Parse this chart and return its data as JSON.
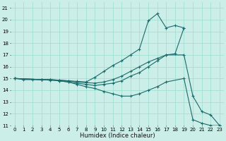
{
  "xlabel": "Humidex (Indice chaleur)",
  "bg_color": "#cceee8",
  "grid_color": "#99ddcc",
  "line_color": "#1a6b6b",
  "xlim": [
    -0.5,
    23.5
  ],
  "ylim": [
    11,
    21.5
  ],
  "xticks": [
    0,
    1,
    2,
    3,
    4,
    5,
    6,
    7,
    8,
    9,
    10,
    11,
    12,
    13,
    14,
    15,
    16,
    17,
    18,
    19,
    20,
    21,
    22,
    23
  ],
  "yticks": [
    11,
    12,
    13,
    14,
    15,
    16,
    17,
    18,
    19,
    20,
    21
  ],
  "line1_x": [
    0,
    1,
    2,
    3,
    4,
    5,
    6,
    7,
    8,
    9,
    10,
    11,
    12,
    13,
    14,
    15,
    16,
    17,
    18,
    19
  ],
  "line1_y": [
    15,
    14.9,
    14.9,
    14.9,
    14.9,
    14.85,
    14.8,
    14.75,
    14.7,
    15.1,
    15.6,
    16.1,
    16.5,
    17.0,
    17.5,
    19.9,
    20.5,
    19.3,
    19.5,
    19.3
  ],
  "line2_x": [
    0,
    3,
    4,
    5,
    6,
    7,
    8,
    9,
    10,
    11,
    12,
    13,
    14,
    15,
    16,
    17,
    18,
    19
  ],
  "line2_y": [
    15,
    14.9,
    14.9,
    14.85,
    14.8,
    14.7,
    14.65,
    14.6,
    14.7,
    14.9,
    15.2,
    15.6,
    16.0,
    16.4,
    16.7,
    17.0,
    17.1,
    19.3
  ],
  "line3_x": [
    0,
    3,
    4,
    5,
    6,
    7,
    8,
    9,
    10,
    11,
    12,
    13,
    14,
    15,
    16,
    17,
    19,
    20,
    21,
    22,
    23
  ],
  "line3_y": [
    15,
    14.9,
    14.9,
    14.8,
    14.7,
    14.6,
    14.5,
    14.4,
    14.5,
    14.6,
    14.8,
    15.2,
    15.5,
    16.0,
    16.5,
    17.0,
    17.0,
    13.5,
    12.2,
    11.9,
    11.0
  ],
  "line4_x": [
    0,
    3,
    4,
    5,
    6,
    7,
    8,
    9,
    10,
    11,
    12,
    13,
    14,
    15,
    16,
    17,
    19,
    20,
    21,
    22,
    23
  ],
  "line4_y": [
    15,
    14.9,
    14.85,
    14.8,
    14.7,
    14.5,
    14.3,
    14.15,
    13.9,
    13.7,
    13.5,
    13.5,
    13.7,
    14.0,
    14.3,
    14.7,
    15.0,
    11.5,
    11.2,
    11.0,
    11.0
  ]
}
